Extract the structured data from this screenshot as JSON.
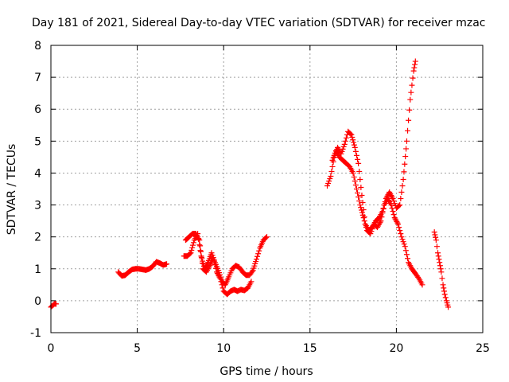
{
  "chart_data": {
    "type": "scatter",
    "title": "Day 181 of 2021, Sidereal Day-to-day VTEC variation (SDTVAR) for receiver mzac",
    "xlabel": "GPS time / hours",
    "ylabel": "SDTVAR / TECUs",
    "xlim": [
      0,
      25
    ],
    "ylim": [
      -1,
      8
    ],
    "xticks": [
      0,
      5,
      10,
      15,
      20,
      25
    ],
    "yticks": [
      -1,
      0,
      1,
      2,
      3,
      4,
      5,
      6,
      7,
      8
    ],
    "grid": true,
    "marker": "+",
    "color": "#ff0000",
    "series": [
      {
        "name": "seg1",
        "x": [
          0.0,
          0.1,
          0.2,
          0.3
        ],
        "y": [
          -0.2,
          -0.15,
          -0.1,
          -0.1
        ]
      },
      {
        "name": "seg2",
        "x": [
          3.9,
          4.1,
          4.3,
          4.5,
          4.7,
          4.9,
          5.1,
          5.3,
          5.5,
          5.7,
          5.9,
          6.1,
          6.3,
          6.5,
          6.7
        ],
        "y": [
          0.9,
          0.78,
          0.8,
          0.9,
          0.98,
          1.0,
          1.0,
          0.98,
          0.96,
          1.0,
          1.08,
          1.22,
          1.18,
          1.12,
          1.15
        ]
      },
      {
        "name": "seg3",
        "x": [
          7.7,
          7.9,
          8.1,
          8.3,
          8.5,
          8.7,
          8.9,
          9.1,
          9.3,
          9.5,
          9.7,
          9.9,
          10.1,
          10.3,
          10.5,
          10.7,
          10.9,
          11.1,
          11.3,
          11.5,
          11.7,
          11.9,
          12.1,
          12.3,
          12.5
        ],
        "y": [
          1.4,
          1.4,
          1.5,
          1.9,
          2.1,
          1.4,
          1.0,
          1.2,
          1.5,
          1.2,
          0.95,
          0.6,
          0.5,
          0.75,
          1.0,
          1.1,
          1.05,
          0.9,
          0.8,
          0.8,
          0.95,
          1.3,
          1.65,
          1.9,
          2.0
        ]
      },
      {
        "name": "seg4",
        "x": [
          7.8,
          8.0,
          8.2,
          8.4,
          8.6,
          8.8,
          9.0,
          9.2,
          9.4,
          9.6,
          9.8,
          10.0,
          10.2,
          10.4,
          10.6,
          10.8,
          11.0,
          11.2,
          11.4,
          11.6
        ],
        "y": [
          1.9,
          2.0,
          2.1,
          2.1,
          1.9,
          1.0,
          0.9,
          1.1,
          1.35,
          0.9,
          0.7,
          0.3,
          0.2,
          0.3,
          0.35,
          0.3,
          0.35,
          0.32,
          0.4,
          0.6
        ]
      },
      {
        "name": "seg5",
        "x": [
          16.0,
          16.2,
          16.4,
          16.6,
          16.8,
          17.0,
          17.2,
          17.4,
          17.6,
          17.8,
          18.0,
          18.2,
          18.4,
          18.6,
          18.8,
          19.0,
          19.2,
          19.4,
          19.6,
          19.8,
          20.0,
          20.2,
          20.4,
          20.6,
          20.8,
          21.0,
          21.1
        ],
        "y": [
          3.6,
          3.9,
          4.5,
          4.8,
          4.6,
          4.9,
          5.3,
          5.2,
          4.8,
          4.3,
          3.3,
          2.4,
          2.2,
          2.3,
          2.5,
          2.6,
          2.8,
          3.2,
          3.4,
          3.2,
          2.9,
          3.0,
          3.8,
          5.0,
          6.3,
          7.2,
          7.5
        ]
      },
      {
        "name": "seg6",
        "x": [
          16.3,
          16.5,
          16.7,
          16.9,
          17.1,
          17.3,
          17.5,
          17.7,
          17.9,
          18.1,
          18.3,
          18.5,
          18.7,
          18.9,
          19.1,
          19.3,
          19.5,
          19.7,
          19.9,
          20.1,
          20.3,
          20.5,
          20.7,
          20.9,
          21.1,
          21.3,
          21.5
        ],
        "y": [
          4.4,
          4.7,
          4.5,
          4.4,
          4.3,
          4.2,
          4.0,
          3.5,
          3.0,
          2.6,
          2.2,
          2.1,
          2.4,
          2.3,
          2.5,
          3.0,
          3.2,
          3.0,
          2.6,
          2.4,
          2.0,
          1.7,
          1.2,
          1.0,
          0.85,
          0.7,
          0.5
        ]
      },
      {
        "name": "seg7",
        "x": [
          22.2,
          22.3,
          22.4,
          22.5,
          22.6,
          22.7,
          22.8,
          22.9,
          23.0
        ],
        "y": [
          2.15,
          1.9,
          1.5,
          1.2,
          0.9,
          0.5,
          0.2,
          0.0,
          -0.2
        ]
      }
    ]
  }
}
